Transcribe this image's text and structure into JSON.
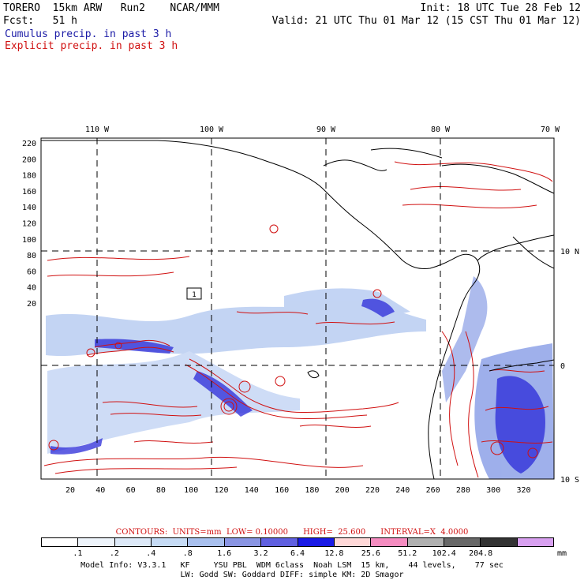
{
  "header": {
    "line1_left": "TORERO  15km ARW   Run2    NCAR/MMM",
    "line1_right": "Init: 18 UTC Tue 28 Feb 12",
    "line2_left": "Fcst:   51 h",
    "line2_right": "Valid: 21 UTC Thu 01 Mar 12 (15 CST Thu 01 Mar 12)",
    "cumulus_label": "Cumulus precip. in past 3 h",
    "explicit_label": "Explicit precip. in past 3 h"
  },
  "colors": {
    "cumulus": "#1a1aa6",
    "explicit": "#d01010",
    "coast": "#000000",
    "grid": "#000000"
  },
  "map": {
    "top_lon_labels": [
      "110 W",
      "100 W",
      "90 W",
      "80 W",
      "70 W"
    ],
    "right_lat_labels": [
      "10 N",
      "0",
      "10 S"
    ],
    "left_ticks": [
      "220",
      "200",
      "180",
      "160",
      "140",
      "120",
      "100",
      "80",
      "60",
      "40",
      "20"
    ],
    "bottom_ticks": [
      "20",
      "40",
      "60",
      "80",
      "100",
      "120",
      "140",
      "160",
      "180",
      "200",
      "220",
      "240",
      "260",
      "280",
      "300",
      "320"
    ],
    "box_label": "1"
  },
  "colorbar": {
    "title": "CONTOURS:  UNITS=mm  LOW= 0.10000      HIGH=  25.600      INTERVAL=X  4.0000",
    "colors": [
      "#ffffff",
      "#eef4fb",
      "#dde9f8",
      "#c6dbf5",
      "#a9c0ee",
      "#8a95e3",
      "#6060e0",
      "#1a1ae6",
      "#ffd8d8",
      "#f58cc0",
      "#b0b0b0",
      "#686868",
      "#333333",
      "#d8a0f0"
    ],
    "labels": [
      ".1",
      ".2",
      ".4",
      ".8",
      "1.6",
      "3.2",
      "6.4",
      "12.8",
      "25.6",
      "51.2",
      "102.4",
      "204.8"
    ],
    "unit": "mm"
  },
  "footer": {
    "line1": "Model Info: V3.3.1   KF     YSU PBL  WDM 6class  Noah LSM  15 km,    44 levels,    77 sec",
    "line2": "LW: Godd SW: Goddard DIFF: simple KM: 2D Smagor"
  }
}
